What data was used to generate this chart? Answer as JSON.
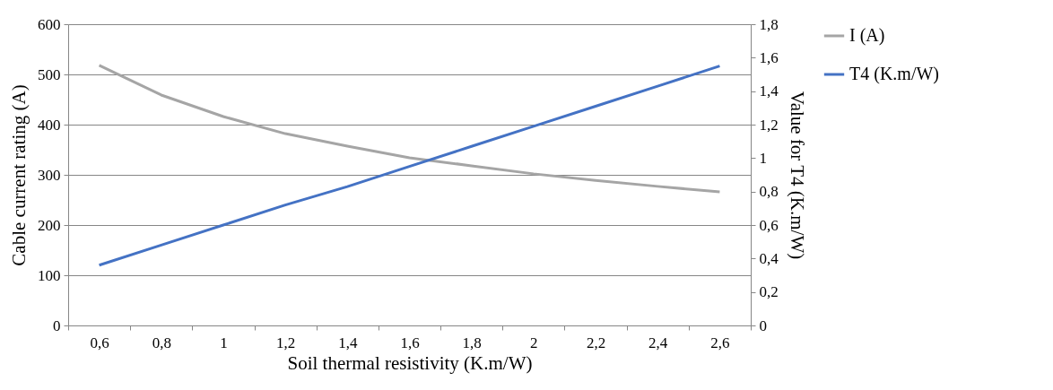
{
  "chart_data": {
    "type": "line",
    "xlabel": "Soil thermal resistivity (K.m/W)",
    "ylabel": "Cable current rating (A)",
    "y2label": "Value for T4 (K.m/W)",
    "categories": [
      "0,6",
      "0,8",
      "1",
      "1,2",
      "1,4",
      "1,6",
      "1,8",
      "2",
      "2,2",
      "2,4",
      "2,6"
    ],
    "series": [
      {
        "name": "I (A)",
        "color": "#a5a5a5",
        "values": [
          518,
          459,
          416,
          382,
          357,
          334,
          318,
          302,
          289,
          277,
          266
        ]
      },
      {
        "name": "T4 (K.m/W)",
        "color": "#4472c4",
        "axis": "y2",
        "values": [
          0.36,
          0.48,
          0.6,
          0.72,
          0.83,
          0.95,
          1.07,
          1.19,
          1.31,
          1.43,
          1.55
        ]
      }
    ],
    "ylim": [
      0,
      600
    ],
    "yticks": [
      0,
      100,
      200,
      300,
      400,
      500,
      600
    ],
    "y2lim": [
      0,
      1.8
    ],
    "y2ticks": [
      {
        "value": 0,
        "label": "0"
      },
      {
        "value": 0.2,
        "label": "0,2"
      },
      {
        "value": 0.4,
        "label": "0,4"
      },
      {
        "value": 0.6,
        "label": "0,6"
      },
      {
        "value": 0.8,
        "label": "0,8"
      },
      {
        "value": 1,
        "label": "1"
      },
      {
        "value": 1.2,
        "label": "1,2"
      },
      {
        "value": 1.4,
        "label": "1,4"
      },
      {
        "value": 1.6,
        "label": "1,6"
      },
      {
        "value": 1.8,
        "label": "1,8"
      }
    ],
    "grid": "y",
    "legend": "right"
  }
}
